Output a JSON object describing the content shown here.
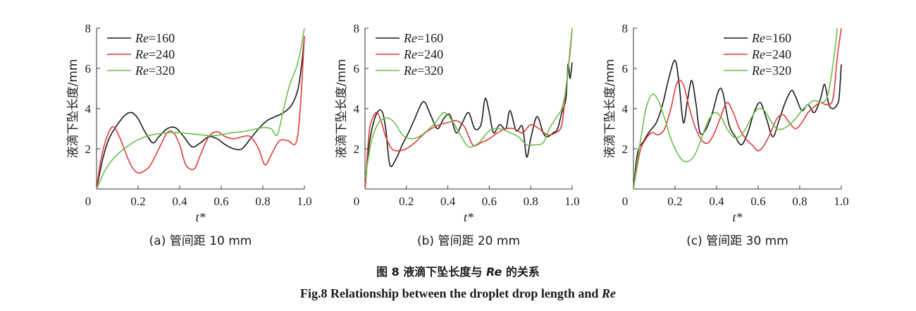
{
  "figure": {
    "caption_cn": {
      "prefix": "图 8   液滴下坠长度与 ",
      "symbol": "Re",
      "suffix": " 的关系"
    },
    "caption_en": {
      "prefix": "Fig.8    Relationship between the droplet drop length and ",
      "symbol": "Re"
    }
  },
  "colors": {
    "Re160": "#1a1a1a",
    "Re240": "#e03a3a",
    "Re320": "#6cbf4a",
    "axis": "#333333"
  },
  "chart_data": [
    {
      "type": "line",
      "subtitle": "(a) 管间距 10 mm",
      "xlabel": "t*",
      "ylabel": "液滴下坠长度/mm",
      "xlim": [
        0,
        1.0
      ],
      "ylim": [
        0,
        8
      ],
      "xticks": [
        "0",
        "0.2",
        "0.4",
        "0.6",
        "0.8",
        "1.0"
      ],
      "yticks": [
        "2",
        "4",
        "6",
        "8"
      ],
      "legend_placement": "top-left",
      "series": [
        {
          "name": "Re=160",
          "label_prefix": "Re",
          "label_value": "=160",
          "color_key": "Re160",
          "x": [
            0,
            0.03,
            0.06,
            0.1,
            0.14,
            0.17,
            0.2,
            0.23,
            0.27,
            0.3,
            0.34,
            0.38,
            0.42,
            0.46,
            0.5,
            0.54,
            0.58,
            0.62,
            0.66,
            0.7,
            0.74,
            0.78,
            0.82,
            0.86,
            0.9,
            0.94,
            0.97,
            0.99,
            1.0
          ],
          "y": [
            0,
            1.5,
            2.5,
            3.2,
            3.7,
            3.8,
            3.5,
            2.9,
            2.3,
            2.6,
            3.0,
            3.05,
            2.6,
            2.1,
            2.3,
            2.6,
            2.5,
            2.2,
            2.0,
            2.0,
            2.5,
            3.0,
            3.4,
            3.6,
            3.8,
            4.2,
            5.0,
            6.5,
            7.6
          ]
        },
        {
          "name": "Re=240",
          "label_prefix": "Re",
          "label_value": "=240",
          "color_key": "Re240",
          "x": [
            0,
            0.02,
            0.05,
            0.08,
            0.11,
            0.14,
            0.17,
            0.2,
            0.23,
            0.26,
            0.3,
            0.34,
            0.37,
            0.4,
            0.43,
            0.47,
            0.5,
            0.54,
            0.58,
            0.62,
            0.66,
            0.7,
            0.74,
            0.78,
            0.81,
            0.84,
            0.88,
            0.92,
            0.96,
            0.98,
            1.0
          ],
          "y": [
            0,
            1.4,
            2.6,
            3.1,
            2.6,
            1.8,
            1.1,
            0.8,
            0.9,
            1.2,
            2.0,
            2.8,
            2.8,
            2.2,
            1.2,
            1.0,
            1.7,
            2.6,
            2.85,
            2.6,
            2.5,
            2.6,
            2.6,
            2.0,
            1.2,
            1.7,
            2.4,
            2.4,
            2.3,
            4.0,
            7.6
          ]
        },
        {
          "name": "Re=320",
          "label_prefix": "Re",
          "label_value": "=320",
          "color_key": "Re320",
          "x": [
            0,
            0.04,
            0.08,
            0.12,
            0.16,
            0.2,
            0.25,
            0.3,
            0.35,
            0.4,
            0.45,
            0.5,
            0.55,
            0.6,
            0.65,
            0.7,
            0.75,
            0.8,
            0.84,
            0.87,
            0.9,
            0.93,
            0.96,
            0.98,
            1.0
          ],
          "y": [
            0,
            0.9,
            1.5,
            1.9,
            2.2,
            2.45,
            2.65,
            2.75,
            2.8,
            2.8,
            2.75,
            2.7,
            2.65,
            2.7,
            2.8,
            2.85,
            2.95,
            3.05,
            3.0,
            2.7,
            4.0,
            5.2,
            6.0,
            6.8,
            8.0
          ]
        }
      ]
    },
    {
      "type": "line",
      "subtitle": "(b) 管间距 20 mm",
      "xlabel": "t*",
      "ylabel": "液滴下坠长度/mm",
      "xlim": [
        0,
        1.0
      ],
      "ylim": [
        0,
        8
      ],
      "xticks": [
        "0",
        "0.2",
        "0.4",
        "0.6",
        "0.8",
        "1.0"
      ],
      "yticks": [
        "2",
        "4",
        "6",
        "8"
      ],
      "legend_placement": "top-left",
      "series": [
        {
          "name": "Re=160",
          "label_prefix": "Re",
          "label_value": "=160",
          "color_key": "Re160",
          "x": [
            0,
            0.02,
            0.05,
            0.08,
            0.1,
            0.12,
            0.15,
            0.18,
            0.21,
            0.24,
            0.27,
            0.29,
            0.32,
            0.35,
            0.38,
            0.41,
            0.44,
            0.47,
            0.5,
            0.53,
            0.56,
            0.58,
            0.6,
            0.62,
            0.65,
            0.68,
            0.7,
            0.73,
            0.76,
            0.78,
            0.8,
            0.83,
            0.86,
            0.88,
            0.91,
            0.93,
            0.95,
            0.97,
            0.98,
            0.99,
            1.0
          ],
          "y": [
            0,
            2.2,
            3.6,
            3.9,
            3.0,
            1.2,
            1.5,
            2.2,
            2.8,
            3.5,
            4.2,
            4.3,
            3.6,
            3.0,
            3.5,
            3.7,
            2.8,
            3.3,
            3.8,
            3.0,
            3.2,
            4.5,
            3.8,
            2.8,
            3.2,
            3.0,
            3.9,
            2.9,
            3.1,
            1.6,
            2.5,
            3.6,
            2.8,
            2.6,
            2.8,
            3.0,
            3.8,
            4.5,
            6.2,
            5.5,
            6.3
          ]
        },
        {
          "name": "Re=240",
          "label_prefix": "Re",
          "label_value": "=240",
          "color_key": "Re240",
          "x": [
            0,
            0.02,
            0.04,
            0.06,
            0.08,
            0.1,
            0.13,
            0.16,
            0.2,
            0.24,
            0.28,
            0.32,
            0.36,
            0.4,
            0.44,
            0.48,
            0.52,
            0.56,
            0.6,
            0.64,
            0.68,
            0.72,
            0.76,
            0.8,
            0.84,
            0.88,
            0.92,
            0.95,
            0.97,
            0.99,
            1.0
          ],
          "y": [
            0,
            2.8,
            3.6,
            3.8,
            3.3,
            2.6,
            2.0,
            1.9,
            2.0,
            2.3,
            2.7,
            3.0,
            3.2,
            3.3,
            3.4,
            3.1,
            2.2,
            2.3,
            2.5,
            2.8,
            3.0,
            3.0,
            2.8,
            3.2,
            3.0,
            2.7,
            2.8,
            3.2,
            5.0,
            6.8,
            8.0
          ]
        },
        {
          "name": "Re=320",
          "label_prefix": "Re",
          "label_value": "=320",
          "color_key": "Re320",
          "x": [
            0,
            0.03,
            0.06,
            0.09,
            0.12,
            0.15,
            0.18,
            0.22,
            0.26,
            0.3,
            0.34,
            0.38,
            0.42,
            0.46,
            0.5,
            0.55,
            0.6,
            0.65,
            0.7,
            0.74,
            0.78,
            0.82,
            0.86,
            0.89,
            0.92,
            0.95,
            0.97,
            0.99,
            1.0
          ],
          "y": [
            0.5,
            2.3,
            3.2,
            3.5,
            3.5,
            3.2,
            2.7,
            2.5,
            2.6,
            2.9,
            3.3,
            3.8,
            3.4,
            2.7,
            2.1,
            2.3,
            2.9,
            3.0,
            2.8,
            2.6,
            2.2,
            2.2,
            2.3,
            3.0,
            3.5,
            4.0,
            5.0,
            7.0,
            8.0
          ]
        }
      ]
    },
    {
      "type": "line",
      "subtitle": "(c) 管间距 30 mm",
      "xlabel": "t*",
      "ylabel": "液滴下坠长度/mm",
      "xlim": [
        0,
        1.0
      ],
      "ylim": [
        0,
        8
      ],
      "xticks": [
        "0",
        "0.2",
        "0.4",
        "0.6",
        "0.8",
        "1.0"
      ],
      "yticks": [
        "2",
        "4",
        "6",
        "8"
      ],
      "legend_placement": "top-right",
      "series": [
        {
          "name": "Re=160",
          "label_prefix": "Re",
          "label_value": "=160",
          "color_key": "Re160",
          "x": [
            0,
            0.02,
            0.05,
            0.08,
            0.11,
            0.14,
            0.17,
            0.2,
            0.22,
            0.24,
            0.26,
            0.28,
            0.3,
            0.32,
            0.35,
            0.38,
            0.41,
            0.43,
            0.46,
            0.49,
            0.52,
            0.55,
            0.58,
            0.61,
            0.64,
            0.67,
            0.7,
            0.73,
            0.76,
            0.78,
            0.81,
            0.84,
            0.87,
            0.9,
            0.92,
            0.94,
            0.96,
            0.98,
            0.99,
            1.0
          ],
          "y": [
            0,
            1.8,
            2.4,
            2.9,
            3.3,
            4.2,
            5.5,
            6.4,
            5.2,
            3.3,
            4.4,
            5.4,
            4.3,
            2.8,
            3.0,
            3.8,
            4.9,
            4.8,
            3.2,
            2.6,
            2.2,
            2.8,
            3.8,
            4.3,
            3.5,
            2.6,
            3.4,
            4.3,
            4.9,
            4.6,
            3.9,
            4.2,
            3.8,
            4.5,
            5.2,
            4.2,
            4.0,
            4.2,
            4.6,
            6.2
          ]
        },
        {
          "name": "Re=240",
          "label_prefix": "Re",
          "label_value": "=240",
          "color_key": "Re240",
          "x": [
            0,
            0.03,
            0.06,
            0.09,
            0.12,
            0.15,
            0.18,
            0.21,
            0.24,
            0.27,
            0.3,
            0.33,
            0.36,
            0.39,
            0.42,
            0.45,
            0.48,
            0.51,
            0.54,
            0.57,
            0.6,
            0.63,
            0.66,
            0.69,
            0.72,
            0.75,
            0.78,
            0.81,
            0.84,
            0.87,
            0.9,
            0.93,
            0.96,
            0.98,
            1.0
          ],
          "y": [
            0,
            1.8,
            2.5,
            2.8,
            2.7,
            3.0,
            4.0,
            5.3,
            5.2,
            4.0,
            3.0,
            2.4,
            2.3,
            2.8,
            3.6,
            4.3,
            3.8,
            3.0,
            2.5,
            2.2,
            1.9,
            2.2,
            2.8,
            3.5,
            3.7,
            3.3,
            3.0,
            3.3,
            3.8,
            4.1,
            4.3,
            4.2,
            4.5,
            6.5,
            8.0
          ]
        },
        {
          "name": "Re=320",
          "label_prefix": "Re",
          "label_value": "=320",
          "color_key": "Re320",
          "x": [
            0,
            0.02,
            0.04,
            0.06,
            0.09,
            0.12,
            0.15,
            0.18,
            0.21,
            0.24,
            0.27,
            0.3,
            0.33,
            0.36,
            0.39,
            0.42,
            0.45,
            0.48,
            0.51,
            0.54,
            0.57,
            0.6,
            0.63,
            0.66,
            0.69,
            0.72,
            0.75,
            0.78,
            0.81,
            0.84,
            0.87,
            0.9,
            0.93,
            0.95,
            0.97,
            0.98
          ],
          "y": [
            0,
            1.5,
            2.8,
            4.0,
            4.7,
            4.4,
            3.5,
            2.5,
            1.8,
            1.4,
            1.4,
            1.8,
            2.6,
            3.4,
            3.8,
            3.6,
            3.0,
            2.6,
            2.6,
            3.0,
            3.6,
            4.0,
            3.9,
            3.4,
            3.0,
            3.0,
            3.2,
            3.5,
            3.9,
            4.2,
            4.4,
            4.3,
            4.5,
            5.5,
            7.0,
            8.0
          ]
        }
      ]
    }
  ]
}
